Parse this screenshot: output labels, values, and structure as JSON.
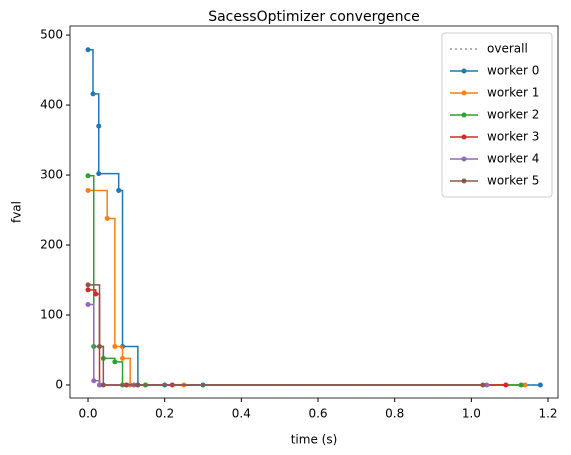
{
  "chart_data": {
    "type": "step",
    "title": "SacessOptimizer convergence",
    "x_label": "time (s)",
    "y_label": "fval",
    "xlim": [
      -0.047,
      1.226
    ],
    "ylim": [
      -18.6,
      513
    ],
    "xticks": [
      {
        "value": 0,
        "label": "0.0"
      },
      0.2,
      0.4,
      0.6,
      0.8,
      {
        "value": 1,
        "label": "1.0"
      },
      1.2
    ],
    "yticks": [
      0,
      100,
      200,
      300,
      400,
      500
    ],
    "legend": "upper right",
    "grid": false,
    "series": [
      {
        "name": "overall",
        "color": "#999999",
        "linestyle": "dotted",
        "marker": false,
        "x": [
          0,
          0.015,
          0.03,
          1.18
        ],
        "values": [
          115,
          6,
          0,
          0
        ]
      },
      {
        "name": "worker 0",
        "color": "#1f77b4",
        "linestyle": "solid",
        "marker": true,
        "x": [
          0,
          0.013,
          0.028,
          0.028,
          0.08,
          0.09,
          0.13,
          0.2,
          0.3,
          1.18
        ],
        "values": [
          479,
          416,
          370,
          302,
          278,
          55,
          0,
          0,
          0,
          0
        ]
      },
      {
        "name": "worker 1",
        "color": "#ff7f0e",
        "linestyle": "solid",
        "marker": true,
        "x": [
          0,
          0.05,
          0.07,
          0.09,
          0.11,
          0.15,
          0.25,
          1.14
        ],
        "values": [
          278,
          238,
          55,
          38,
          0,
          0,
          0,
          0
        ]
      },
      {
        "name": "worker 2",
        "color": "#2ca02c",
        "linestyle": "solid",
        "marker": true,
        "x": [
          0,
          0.015,
          0.04,
          0.07,
          0.09,
          0.15,
          1.13
        ],
        "values": [
          299,
          55,
          38,
          33,
          0,
          0,
          0
        ]
      },
      {
        "name": "worker 3",
        "color": "#d62728",
        "linestyle": "solid",
        "marker": true,
        "x": [
          0,
          0.02,
          0.03,
          0.1,
          0.22,
          1.09
        ],
        "values": [
          136,
          130,
          0,
          0,
          0,
          0
        ]
      },
      {
        "name": "worker 4",
        "color": "#9467bd",
        "linestyle": "solid",
        "marker": true,
        "x": [
          0,
          0.015,
          0.03,
          0.12,
          1.04
        ],
        "values": [
          115,
          6,
          0,
          0,
          0
        ]
      },
      {
        "name": "worker 5",
        "color": "#8c564b",
        "linestyle": "solid",
        "marker": true,
        "x": [
          0,
          0.03,
          0.04,
          0.13,
          1.03
        ],
        "values": [
          143,
          55,
          0,
          0,
          0
        ]
      }
    ]
  }
}
